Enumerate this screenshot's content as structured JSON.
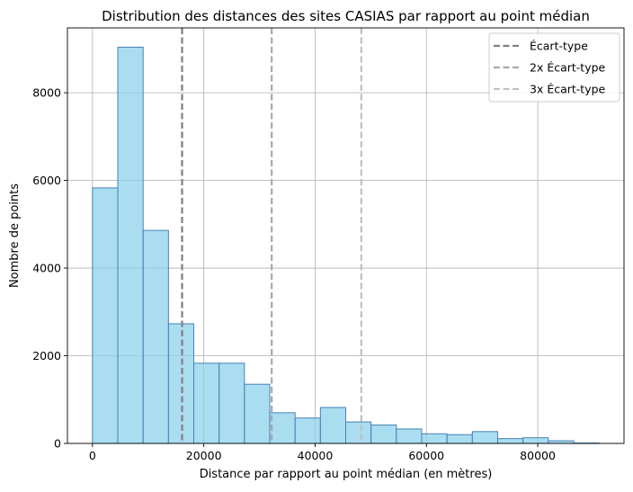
{
  "chart_data": {
    "type": "bar",
    "title": "Distribution des distances des sites CASIAS par rapport au point médian",
    "xlabel": "Distance par rapport au point médian (en mètres)",
    "ylabel": "Nombre de points",
    "xlim": [
      -4500,
      95500
    ],
    "ylim": [
      0,
      9480
    ],
    "xticks": [
      0,
      20000,
      40000,
      60000,
      80000
    ],
    "yticks": [
      0,
      2000,
      4000,
      6000,
      8000
    ],
    "grid": true,
    "bar_color": "#87ceeb",
    "bar_edge_color": "#4682b4",
    "bins": [
      {
        "x0": 0,
        "x1": 4550,
        "count": 5830
      },
      {
        "x0": 4550,
        "x1": 9100,
        "count": 9040
      },
      {
        "x0": 9100,
        "x1": 13650,
        "count": 4860
      },
      {
        "x0": 13650,
        "x1": 18200,
        "count": 2730
      },
      {
        "x0": 18200,
        "x1": 22750,
        "count": 1830
      },
      {
        "x0": 22750,
        "x1": 27300,
        "count": 1830
      },
      {
        "x0": 27300,
        "x1": 31850,
        "count": 1350
      },
      {
        "x0": 31850,
        "x1": 36400,
        "count": 700
      },
      {
        "x0": 36400,
        "x1": 40950,
        "count": 580
      },
      {
        "x0": 40950,
        "x1": 45500,
        "count": 820
      },
      {
        "x0": 45500,
        "x1": 50050,
        "count": 490
      },
      {
        "x0": 50050,
        "x1": 54600,
        "count": 420
      },
      {
        "x0": 54600,
        "x1": 59150,
        "count": 330
      },
      {
        "x0": 59150,
        "x1": 63700,
        "count": 220
      },
      {
        "x0": 63700,
        "x1": 68250,
        "count": 200
      },
      {
        "x0": 68250,
        "x1": 72800,
        "count": 270
      },
      {
        "x0": 72800,
        "x1": 77350,
        "count": 110
      },
      {
        "x0": 77350,
        "x1": 81900,
        "count": 130
      },
      {
        "x0": 81900,
        "x1": 86450,
        "count": 60
      },
      {
        "x0": 86450,
        "x1": 91000,
        "count": 10
      }
    ],
    "reference_lines": [
      {
        "name": "Écart-type",
        "x": 16100,
        "color": "#808080"
      },
      {
        "name": "2x Écart-type",
        "x": 32200,
        "color": "#a9a9a9"
      },
      {
        "name": "3x Écart-type",
        "x": 48300,
        "color": "#c0c0c0"
      }
    ],
    "legend": {
      "position": "top-right",
      "entries": [
        "Écart-type",
        "2x Écart-type",
        "3x Écart-type"
      ]
    }
  }
}
